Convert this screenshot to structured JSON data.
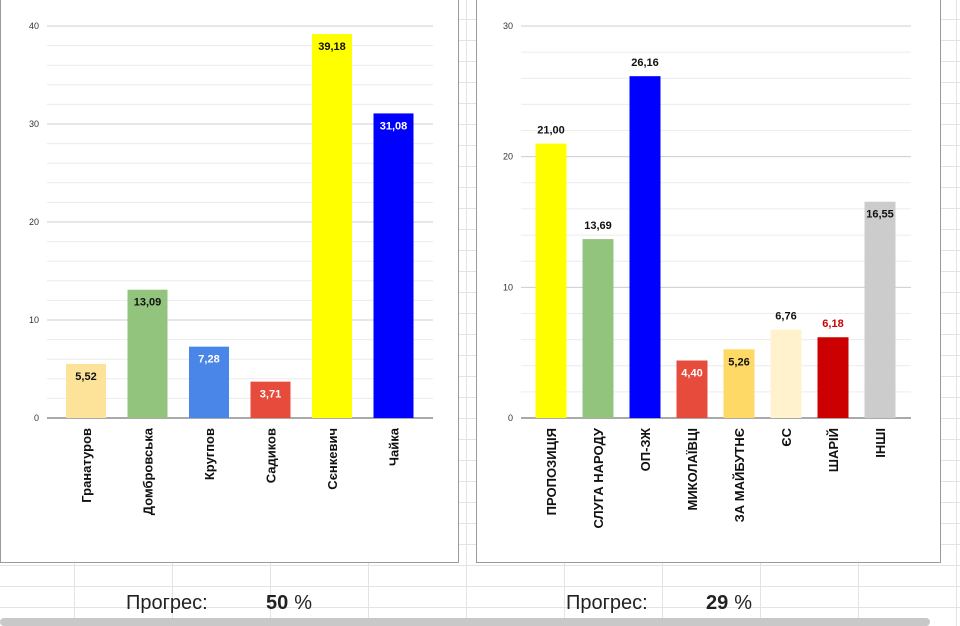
{
  "chart_data": [
    {
      "type": "bar",
      "categories": [
        "Гранатуров",
        "Домбровська",
        "Кругпов",
        "Садиков",
        "Сєнкевич",
        "Чайка"
      ],
      "values": [
        5.52,
        13.09,
        7.28,
        3.71,
        39.18,
        31.08
      ],
      "value_labels": [
        "5,52",
        "13,09",
        "7,28",
        "3,71",
        "39,18",
        "31,08"
      ],
      "colors": [
        "#fde39a",
        "#93c47d",
        "#4a86e8",
        "#e64b3c",
        "#ffff00",
        "#0000ff"
      ],
      "label_colors": [
        "#111111",
        "#111111",
        "#ffffff",
        "#ffffff",
        "#111111",
        "#ffffff"
      ],
      "label_inside": [
        true,
        true,
        true,
        true,
        true,
        true
      ],
      "ylim": [
        0,
        40
      ],
      "yticks": [
        0,
        10,
        20,
        30,
        40
      ],
      "title": "",
      "xlabel": "",
      "ylabel": ""
    },
    {
      "type": "bar",
      "categories": [
        "ПРОПОЗИЦІЯ",
        "СЛУГА НАРОДУ",
        "ОП-ЗЖ",
        "МИКОЛАЇВЦІ",
        "ЗА МАЙБУТНЄ",
        "ЄС",
        "ШАРІЙ",
        "ІНШІ"
      ],
      "values": [
        21.0,
        13.69,
        26.16,
        4.4,
        5.26,
        6.76,
        6.18,
        16.55
      ],
      "value_labels": [
        "21,00",
        "13,69",
        "26,16",
        "4,40",
        "5,26",
        "6,76",
        "6,18",
        "16,55"
      ],
      "colors": [
        "#ffff00",
        "#93c47d",
        "#0000ff",
        "#e64b3c",
        "#ffd966",
        "#fff2cc",
        "#cc0000",
        "#cccccc"
      ],
      "label_colors": [
        "#111111",
        "#111111",
        "#111111",
        "#ffffff",
        "#111111",
        "#111111",
        "#cc0000",
        "#111111"
      ],
      "label_inside": [
        false,
        false,
        false,
        true,
        true,
        false,
        false,
        true
      ],
      "ylim": [
        0,
        30
      ],
      "yticks": [
        0,
        10,
        20,
        30
      ],
      "title": "",
      "xlabel": "",
      "ylabel": ""
    }
  ],
  "progress": [
    {
      "label": "Прогрес:",
      "value": "50",
      "unit": "%"
    },
    {
      "label": "Прогрес:",
      "value": "29",
      "unit": "%"
    }
  ]
}
